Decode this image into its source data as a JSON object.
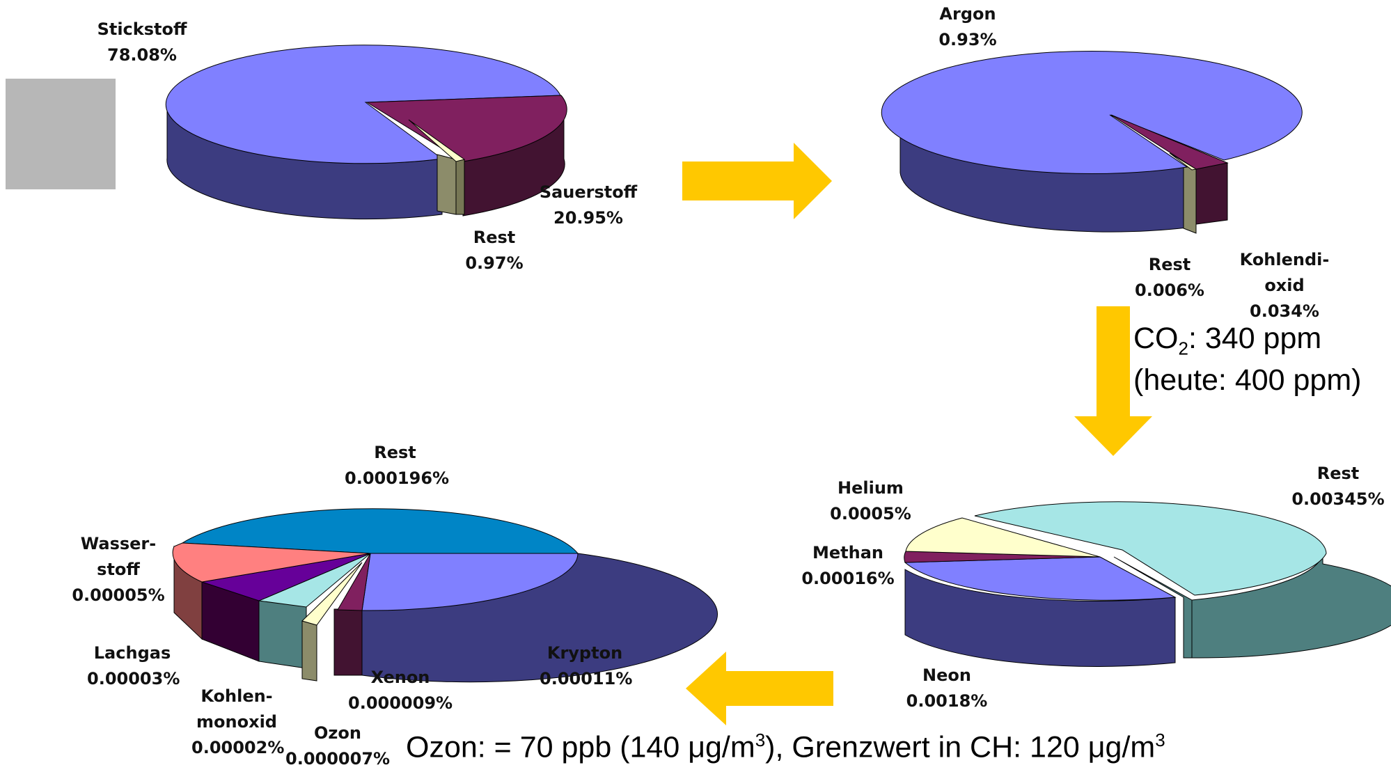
{
  "colors": {
    "arrow": "#FFC800",
    "gray_box": "#b7b7b7"
  },
  "chart_data": [
    {
      "type": "pie",
      "slices": [
        {
          "label": "Stickstoff",
          "value": 78.08,
          "value_text": "78.08%",
          "color": "#8080FF"
        },
        {
          "label": "Sauerstoff",
          "value": 20.95,
          "value_text": "20.95%",
          "color": "#80205F"
        },
        {
          "label": "Rest",
          "value": 0.97,
          "value_text": "0.97%",
          "color": "#FFFFCC"
        }
      ]
    },
    {
      "type": "pie",
      "slices": [
        {
          "label": "Argon",
          "value": 0.93,
          "value_text": "0.93%",
          "color": "#8080FF"
        },
        {
          "label": "Kohlendi-\noxid",
          "value": 0.034,
          "value_text": "0.034%",
          "color": "#80205F"
        },
        {
          "label": "Rest",
          "value": 0.006,
          "value_text": "0.006%",
          "color": "#FFFFCC"
        }
      ]
    },
    {
      "type": "pie",
      "slices": [
        {
          "label": "Rest",
          "value": 0.00345,
          "value_text": "0.00345%",
          "color": "#A6E6E6"
        },
        {
          "label": "Neon",
          "value": 0.0018,
          "value_text": "0.0018%",
          "color": "#8080FF"
        },
        {
          "label": "Methan",
          "value": 0.00016,
          "value_text": "0.00016%",
          "color": "#80205F"
        },
        {
          "label": "Helium",
          "value": 0.0005,
          "value_text": "0.0005%",
          "color": "#FFFFCC"
        }
      ]
    },
    {
      "type": "pie",
      "slices": [
        {
          "label": "Rest",
          "value": 0.000196,
          "value_text": "0.000196%",
          "color": "#0085C6"
        },
        {
          "label": "Krypton",
          "value": 0.00011,
          "value_text": "0.00011%",
          "color": "#8080FF"
        },
        {
          "label": "Xenon",
          "value": 9e-06,
          "value_text": "0.000009%",
          "color": "#80205F"
        },
        {
          "label": "Ozon",
          "value": 7e-06,
          "value_text": "0.000007%",
          "color": "#FFFFCC"
        },
        {
          "label": "Kohlen-\nmonoxid",
          "value": 2e-05,
          "value_text": "0.00002%",
          "color": "#A6E6E6"
        },
        {
          "label": "Lachgas",
          "value": 3e-05,
          "value_text": "0.00003%",
          "color": "#660099"
        },
        {
          "label": "Wasser-\nstoff",
          "value": 5e-05,
          "value_text": "0.00005%",
          "color": "#FF8080"
        }
      ]
    }
  ],
  "notes": {
    "co2_prefix": "CO",
    "co2_sub": "2",
    "co2_rest": ": 340 ppm",
    "co2_today": "(heute: 400 ppm)",
    "ozone_a": "Ozon: = 70 ppb (140 ",
    "ozone_mu1": "μ",
    "ozone_b": "g/m",
    "ozone_sup1": "3",
    "ozone_c": "), Grenzwert in CH: 120 ",
    "ozone_mu2": "μ",
    "ozone_d": "g/m",
    "ozone_sup2": "3"
  }
}
